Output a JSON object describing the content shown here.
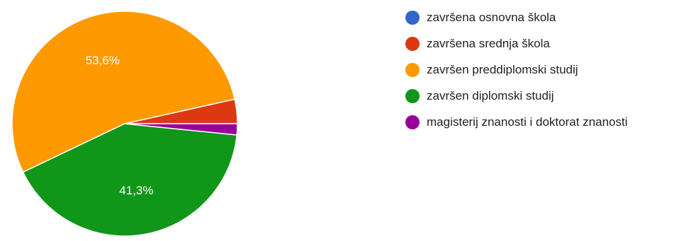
{
  "chart_data": {
    "type": "pie",
    "categories": [
      "završena osnovna škola",
      "završena srednja škola",
      "završen preddiplomski studij",
      "završen diplomski studij",
      "magisterij znanosti i doktorat znanosti"
    ],
    "values": [
      0.0,
      3.5,
      53.6,
      41.3,
      1.6
    ],
    "colors": [
      "#3366cc",
      "#dc3912",
      "#ff9900",
      "#109618",
      "#990099"
    ],
    "data_labels": [
      "",
      "",
      "53,6%",
      "41,3%",
      ""
    ],
    "legend_position": "right",
    "start_angle_deg": 0
  }
}
